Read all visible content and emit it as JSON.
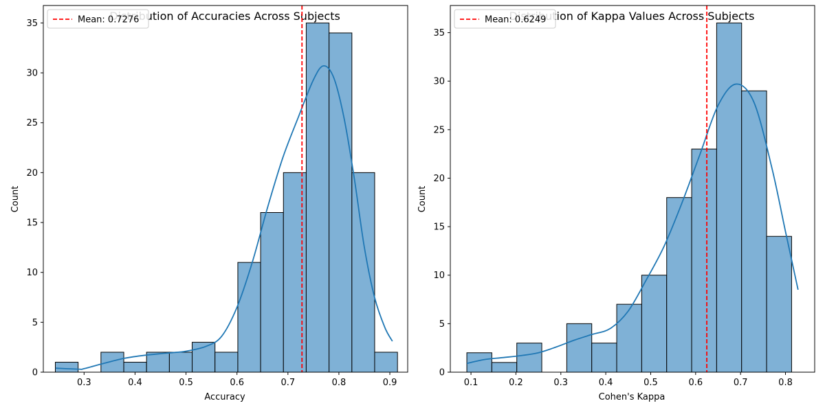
{
  "chart_data": [
    {
      "type": "histogram",
      "title": "Distribution of Accuracies Across Subjects",
      "xlabel": "Accuracy",
      "ylabel": "Count",
      "xlim": [
        0.22,
        0.935
      ],
      "ylim": [
        0,
        36.75
      ],
      "xticks": [
        0.3,
        0.4,
        0.5,
        0.6,
        0.7,
        0.8,
        0.9
      ],
      "xtick_labels": [
        "0.3",
        "0.4",
        "0.5",
        "0.6",
        "0.7",
        "0.8",
        "0.9"
      ],
      "yticks": [
        0,
        5,
        10,
        15,
        20,
        25,
        30,
        35
      ],
      "ytick_labels": [
        "0",
        "5",
        "10",
        "15",
        "20",
        "25",
        "30",
        "35"
      ],
      "bin_edges": [
        0.2436,
        0.2883,
        0.3331,
        0.3779,
        0.4226,
        0.4674,
        0.5121,
        0.5569,
        0.6017,
        0.6464,
        0.6912,
        0.7359,
        0.7807,
        0.8255,
        0.8702,
        0.915
      ],
      "counts": [
        1,
        0,
        2,
        1,
        2,
        2,
        3,
        2,
        11,
        16,
        20,
        35,
        34,
        20,
        2
      ],
      "kde": {
        "x": [
          0.244,
          0.29,
          0.3,
          0.34,
          0.38,
          0.42,
          0.46,
          0.5,
          0.54,
          0.57,
          0.6,
          0.63,
          0.66,
          0.69,
          0.72,
          0.75,
          0.77,
          0.79,
          0.81,
          0.83,
          0.85,
          0.87,
          0.89,
          0.905
        ],
        "y": [
          0.4,
          0.3,
          0.35,
          0.9,
          1.4,
          1.7,
          1.9,
          2.1,
          2.6,
          3.6,
          6.5,
          11,
          16.5,
          21.5,
          25.5,
          29.3,
          30.7,
          29.5,
          25.5,
          19.5,
          12.5,
          7.5,
          4.5,
          3.1
        ]
      },
      "mean": 0.7276,
      "legend": {
        "label": "Mean: 0.7276",
        "position": "top-left"
      },
      "grid": false,
      "colors": {
        "bar": "#7fb1d6",
        "edge": "#000000",
        "kde": "#1f77b4",
        "mean_line": "#ff0000"
      }
    },
    {
      "type": "histogram",
      "title": "Distribution of Kappa Values Across Subjects",
      "xlabel": "Cohen's Kappa",
      "ylabel": "Count",
      "xlim": [
        0.054,
        0.865
      ],
      "ylim": [
        0,
        37.8
      ],
      "xticks": [
        0.1,
        0.2,
        0.3,
        0.4,
        0.5,
        0.6,
        0.7,
        0.8
      ],
      "xtick_labels": [
        "0.1",
        "0.2",
        "0.3",
        "0.4",
        "0.5",
        "0.6",
        "0.7",
        "0.8"
      ],
      "yticks": [
        0,
        5,
        10,
        15,
        20,
        25,
        30,
        35
      ],
      "ytick_labels": [
        "0",
        "5",
        "10",
        "15",
        "20",
        "25",
        "30",
        "35"
      ],
      "bin_edges": [
        0.0908,
        0.1464,
        0.202,
        0.2576,
        0.3132,
        0.3688,
        0.4244,
        0.48,
        0.5356,
        0.5912,
        0.6468,
        0.7024,
        0.758,
        0.8136
      ],
      "bin_edges_note": "",
      "counts": [
        2,
        1,
        3,
        0,
        5,
        3,
        7,
        10,
        18,
        23,
        36,
        29,
        14
      ],
      "kde": {
        "x": [
          0.0908,
          0.13,
          0.17,
          0.21,
          0.25,
          0.29,
          0.33,
          0.37,
          0.41,
          0.45,
          0.49,
          0.53,
          0.57,
          0.61,
          0.65,
          0.69,
          0.73,
          0.77,
          0.8,
          0.828
        ],
        "y": [
          0.9,
          1.3,
          1.5,
          1.7,
          2.0,
          2.6,
          3.3,
          3.9,
          4.5,
          6.3,
          9.5,
          13.0,
          17.5,
          22.5,
          27.5,
          29.7,
          27.8,
          21.0,
          14.5,
          8.5
        ]
      },
      "mean": 0.6249,
      "legend": {
        "label": "Mean: 0.6249",
        "position": "top-left"
      },
      "grid": false,
      "colors": {
        "bar": "#7fb1d6",
        "edge": "#000000",
        "kde": "#1f77b4",
        "mean_line": "#ff0000"
      }
    }
  ]
}
